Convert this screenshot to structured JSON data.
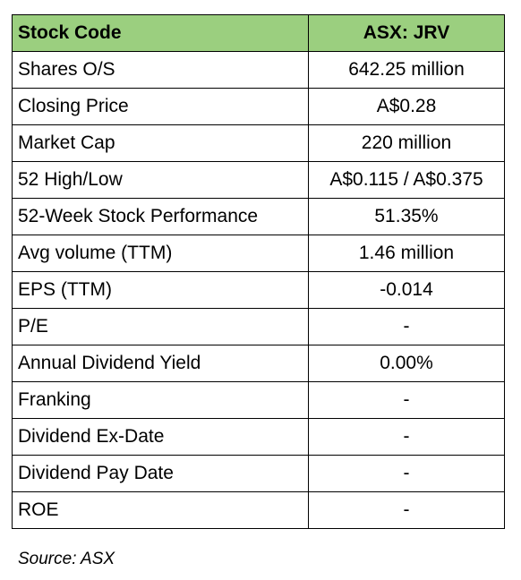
{
  "table": {
    "header": [
      "Stock Code",
      "ASX: JRV"
    ],
    "rows": [
      [
        "Shares O/S",
        "642.25 million"
      ],
      [
        "Closing Price",
        "A$0.28"
      ],
      [
        "Market Cap",
        "220 million"
      ],
      [
        "52 High/Low",
        "A$0.115 / A$0.375"
      ],
      [
        "52-Week Stock Performance",
        "51.35%"
      ],
      [
        "Avg volume (TTM)",
        "1.46 million"
      ],
      [
        "EPS (TTM)",
        "-0.014"
      ],
      [
        "P/E",
        "-"
      ],
      [
        "Annual Dividend Yield",
        "0.00%"
      ],
      [
        "Franking",
        "-"
      ],
      [
        "Dividend Ex-Date",
        "-"
      ],
      [
        "Dividend Pay Date",
        "-"
      ],
      [
        "ROE",
        "-"
      ]
    ]
  },
  "source": "Source: ASX"
}
